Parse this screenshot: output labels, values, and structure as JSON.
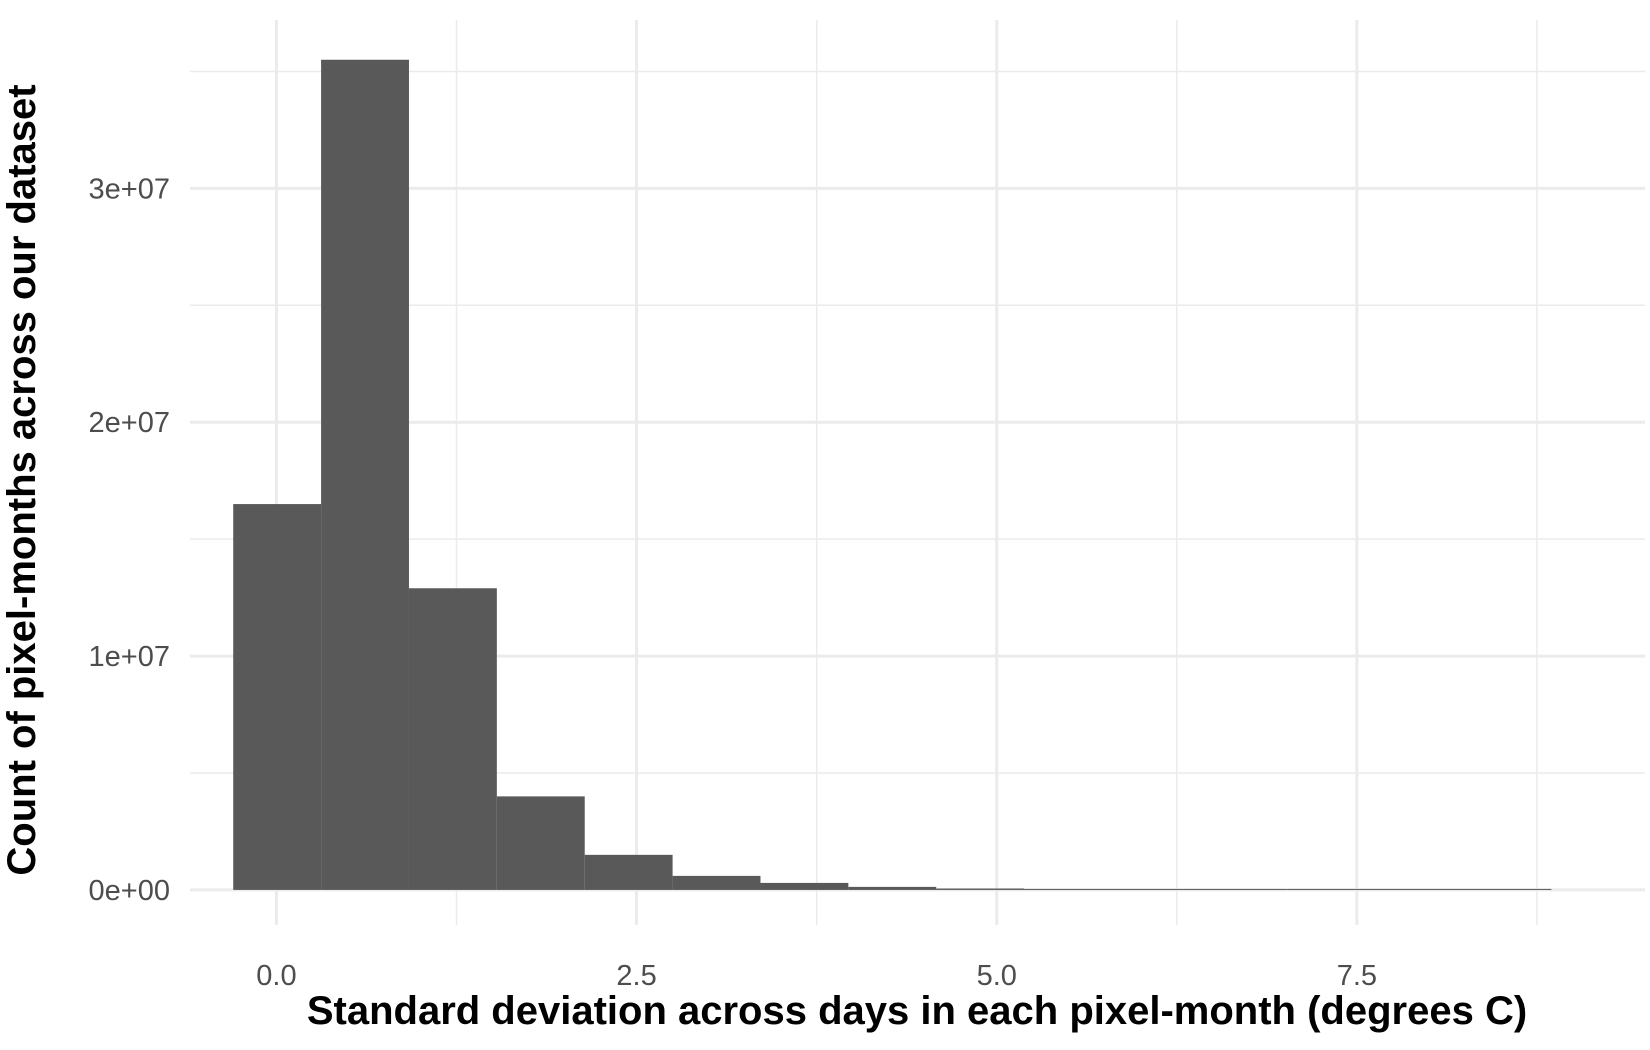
{
  "chart_data": {
    "type": "bar",
    "subtype": "histogram",
    "title": "",
    "xlabel": "Standard deviation across days in each pixel-month (degrees C)",
    "ylabel": "Count of pixel-months across our dataset",
    "xlim": [
      -0.6,
      9.5
    ],
    "ylim": [
      -1500000.0,
      37200000.0
    ],
    "x_ticks": [
      0,
      2.5,
      5,
      7.5
    ],
    "x_tick_labels": [
      "0.0",
      "2.5",
      "5.0",
      "7.5"
    ],
    "x_minor_gridlines": [
      1.25,
      3.75,
      6.25,
      8.75
    ],
    "y_ticks": [
      0,
      10000000,
      20000000,
      30000000
    ],
    "y_tick_labels": [
      "0e+00",
      "1e+07",
      "2e+07",
      "3e+07"
    ],
    "y_minor_gridlines": [
      5000000,
      15000000,
      25000000,
      35000000
    ],
    "grid": true,
    "legend": "none",
    "bar_color": "#595959",
    "bins": [
      {
        "x0": -0.3,
        "x1": 0.31,
        "count": 16500000
      },
      {
        "x0": 0.31,
        "x1": 0.92,
        "count": 35500000
      },
      {
        "x0": 0.92,
        "x1": 1.53,
        "count": 12900000
      },
      {
        "x0": 1.53,
        "x1": 2.14,
        "count": 4000000
      },
      {
        "x0": 2.14,
        "x1": 2.75,
        "count": 1500000
      },
      {
        "x0": 2.75,
        "x1": 3.36,
        "count": 600000
      },
      {
        "x0": 3.36,
        "x1": 3.97,
        "count": 300000
      },
      {
        "x0": 3.97,
        "x1": 4.58,
        "count": 130000
      },
      {
        "x0": 4.58,
        "x1": 5.19,
        "count": 60000
      },
      {
        "x0": 5.19,
        "x1": 5.8,
        "count": 30000
      },
      {
        "x0": 5.8,
        "x1": 6.41,
        "count": 15000
      },
      {
        "x0": 6.41,
        "x1": 7.02,
        "count": 8000
      },
      {
        "x0": 7.02,
        "x1": 7.63,
        "count": 4000
      },
      {
        "x0": 7.63,
        "x1": 8.24,
        "count": 2000
      },
      {
        "x0": 8.24,
        "x1": 8.85,
        "count": 1000
      }
    ]
  }
}
